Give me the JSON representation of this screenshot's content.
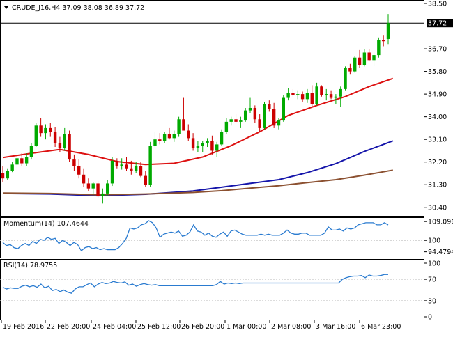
{
  "header": {
    "symbol_line": "CRUDE_J16,H4  37.09 38.08 36.89 37.72"
  },
  "indicators": {
    "momentum_label": "Momentum(14) 107.4644",
    "rsi_label": "RSI(14) 78.9755"
  },
  "colors": {
    "bull": "#00aa00",
    "bear": "#cc0000",
    "ma_fast": "#dd1111",
    "ma_mid": "#1515aa",
    "ma_slow": "#8b5030",
    "oscillator": "#2a7bd0",
    "grid": "#c8c8c8",
    "current_price_line": "#000000"
  },
  "chart_data": [
    {
      "type": "candlestick",
      "title": "CRUDE_J16,H4",
      "ohlc_header": {
        "open": 37.09,
        "high": 38.08,
        "low": 36.89,
        "close": 37.72
      },
      "ylim": [
        30.2,
        38.5
      ],
      "yticks": [
        "38.50",
        "37.72",
        "36.70",
        "35.80",
        "34.90",
        "34.00",
        "33.10",
        "32.20",
        "31.30",
        "30.40"
      ],
      "current_price": "37.72",
      "x_tick_labels": [
        "19 Feb 2016",
        "22 Feb 20:00",
        "24 Feb 04:00",
        "25 Feb 12:00",
        "26 Feb 20:00",
        "1 Mar 00:00",
        "2 Mar 08:00",
        "3 Mar 16:00",
        "6 Mar 23:00"
      ],
      "candles": [
        [
          31.75,
          32.05,
          31.4,
          31.55
        ],
        [
          31.55,
          31.95,
          31.5,
          31.85
        ],
        [
          31.85,
          32.2,
          31.8,
          32.1
        ],
        [
          32.1,
          32.45,
          31.95,
          32.35
        ],
        [
          32.35,
          32.55,
          32.05,
          32.15
        ],
        [
          32.15,
          32.55,
          32.05,
          32.4
        ],
        [
          32.4,
          32.95,
          32.3,
          32.85
        ],
        [
          32.85,
          33.75,
          32.8,
          33.65
        ],
        [
          33.65,
          33.95,
          33.2,
          33.35
        ],
        [
          33.35,
          33.7,
          33.1,
          33.55
        ],
        [
          33.55,
          33.75,
          33.2,
          33.4
        ],
        [
          33.4,
          33.6,
          32.8,
          32.95
        ],
        [
          32.95,
          33.2,
          32.6,
          32.75
        ],
        [
          32.75,
          33.55,
          32.65,
          33.3
        ],
        [
          33.3,
          33.45,
          32.2,
          32.3
        ],
        [
          32.3,
          32.5,
          31.85,
          32.05
        ],
        [
          32.05,
          32.3,
          31.55,
          31.7
        ],
        [
          31.7,
          31.95,
          31.2,
          31.35
        ],
        [
          31.35,
          31.55,
          31.05,
          31.15
        ],
        [
          31.15,
          31.4,
          30.95,
          31.35
        ],
        [
          31.35,
          31.45,
          30.75,
          30.85
        ],
        [
          30.85,
          31.15,
          30.55,
          30.95
        ],
        [
          30.95,
          31.5,
          30.85,
          31.35
        ],
        [
          31.35,
          32.4,
          31.25,
          32.25
        ],
        [
          32.25,
          32.35,
          31.95,
          32.05
        ],
        [
          32.05,
          32.35,
          31.9,
          32.1
        ],
        [
          32.1,
          32.4,
          31.85,
          31.95
        ],
        [
          31.95,
          32.25,
          31.7,
          31.85
        ],
        [
          31.85,
          32.2,
          31.75,
          32.05
        ],
        [
          32.05,
          32.2,
          31.6,
          31.65
        ],
        [
          31.65,
          31.85,
          31.2,
          31.3
        ],
        [
          31.3,
          33.0,
          31.2,
          32.85
        ],
        [
          32.85,
          33.4,
          32.75,
          33.1
        ],
        [
          33.1,
          33.35,
          32.9,
          33.05
        ],
        [
          33.05,
          33.4,
          32.95,
          33.3
        ],
        [
          33.3,
          33.55,
          33.1,
          33.15
        ],
        [
          33.15,
          33.45,
          33.0,
          33.3
        ],
        [
          33.3,
          34.0,
          33.2,
          33.9
        ],
        [
          33.9,
          34.75,
          33.5,
          33.45
        ],
        [
          33.45,
          33.7,
          33.05,
          33.15
        ],
        [
          33.15,
          33.35,
          32.65,
          32.75
        ],
        [
          32.75,
          33.05,
          32.6,
          32.85
        ],
        [
          32.85,
          33.05,
          32.6,
          32.95
        ],
        [
          32.95,
          33.15,
          32.8,
          33.05
        ],
        [
          33.05,
          33.25,
          32.5,
          32.65
        ],
        [
          32.65,
          33.0,
          32.4,
          32.9
        ],
        [
          32.9,
          33.5,
          32.85,
          33.4
        ],
        [
          33.4,
          33.95,
          33.3,
          33.8
        ],
        [
          33.8,
          34.0,
          33.65,
          33.9
        ],
        [
          33.9,
          34.1,
          33.75,
          33.8
        ],
        [
          33.8,
          34.0,
          33.55,
          33.85
        ],
        [
          33.85,
          34.35,
          33.8,
          34.25
        ],
        [
          34.25,
          34.75,
          34.15,
          34.35
        ],
        [
          34.35,
          34.45,
          33.75,
          33.9
        ],
        [
          33.9,
          34.1,
          33.4,
          33.55
        ],
        [
          33.55,
          34.6,
          33.5,
          34.5
        ],
        [
          34.5,
          34.65,
          34.2,
          34.3
        ],
        [
          34.3,
          34.55,
          33.55,
          33.65
        ],
        [
          33.65,
          33.95,
          33.5,
          33.85
        ],
        [
          33.85,
          34.85,
          33.8,
          34.75
        ],
        [
          34.75,
          35.15,
          34.65,
          34.95
        ],
        [
          34.95,
          35.1,
          34.8,
          34.85
        ],
        [
          34.85,
          35.05,
          34.7,
          34.9
        ],
        [
          34.9,
          35.0,
          34.6,
          34.7
        ],
        [
          34.7,
          35.1,
          34.55,
          34.95
        ],
        [
          34.95,
          35.25,
          34.4,
          34.5
        ],
        [
          34.5,
          35.35,
          34.45,
          35.2
        ],
        [
          35.2,
          35.25,
          34.8,
          34.85
        ],
        [
          34.85,
          35.1,
          34.65,
          34.9
        ],
        [
          34.9,
          35.05,
          34.7,
          34.75
        ],
        [
          34.75,
          34.9,
          34.5,
          34.8
        ],
        [
          34.8,
          35.2,
          34.4,
          35.1
        ],
        [
          35.1,
          36.0,
          35.05,
          35.95
        ],
        [
          35.95,
          36.1,
          35.7,
          35.8
        ],
        [
          35.8,
          36.4,
          35.75,
          36.35
        ],
        [
          36.35,
          36.65,
          35.95,
          36.05
        ],
        [
          36.05,
          36.7,
          36.0,
          36.55
        ],
        [
          36.55,
          36.7,
          36.2,
          36.25
        ],
        [
          36.25,
          36.55,
          36.0,
          36.45
        ],
        [
          36.45,
          37.15,
          36.35,
          37.05
        ],
        [
          37.05,
          37.25,
          36.8,
          37.0
        ],
        [
          37.09,
          38.08,
          36.89,
          37.72
        ]
      ],
      "moving_averages": [
        {
          "color_key": "ma_fast",
          "points": [
            [
              0,
              32.38
            ],
            [
              6,
              32.55
            ],
            [
              12,
              32.7
            ],
            [
              18,
              32.5
            ],
            [
              24,
              32.22
            ],
            [
              30,
              32.1
            ],
            [
              36,
              32.15
            ],
            [
              42,
              32.4
            ],
            [
              48,
              32.85
            ],
            [
              54,
              33.4
            ],
            [
              60,
              34.05
            ],
            [
              66,
              34.45
            ],
            [
              72,
              34.8
            ],
            [
              77,
              35.2
            ],
            [
              82,
              35.52
            ]
          ]
        },
        {
          "color_key": "ma_mid",
          "points": [
            [
              0,
              30.95
            ],
            [
              10,
              30.93
            ],
            [
              20,
              30.86
            ],
            [
              30,
              30.92
            ],
            [
              40,
              31.05
            ],
            [
              46,
              31.2
            ],
            [
              52,
              31.35
            ],
            [
              58,
              31.5
            ],
            [
              64,
              31.78
            ],
            [
              70,
              32.14
            ],
            [
              76,
              32.62
            ],
            [
              82,
              33.04
            ]
          ]
        },
        {
          "color_key": "ma_slow",
          "points": [
            [
              0,
              30.97
            ],
            [
              10,
              30.95
            ],
            [
              20,
              30.9
            ],
            [
              30,
              30.93
            ],
            [
              40,
              30.99
            ],
            [
              46,
              31.06
            ],
            [
              52,
              31.16
            ],
            [
              58,
              31.26
            ],
            [
              64,
              31.38
            ],
            [
              70,
              31.5
            ],
            [
              76,
              31.68
            ],
            [
              82,
              31.88
            ]
          ]
        }
      ]
    },
    {
      "type": "line",
      "title": "Momentum(14) 107.4644",
      "ylim": [
        92.0,
        110.5
      ],
      "yticks": [
        "109.0966",
        "100",
        "94.4794"
      ],
      "values": [
        99,
        97.5,
        98,
        96.5,
        96,
        97.5,
        98.5,
        97.5,
        99.5,
        98.5,
        100.5,
        100,
        101.5,
        100.5,
        101,
        98.5,
        100,
        99,
        97.5,
        99,
        98,
        95,
        96.5,
        97,
        96,
        96.5,
        95.5,
        96,
        95.5,
        95.5,
        95.5,
        96.5,
        98.5,
        101,
        106,
        105.5,
        106,
        107.5,
        108,
        109.5,
        108.5,
        106,
        101.5,
        103,
        103.5,
        104,
        103.5,
        104.5,
        102,
        102.5,
        104,
        107.5,
        104.5,
        104,
        102.5,
        103.5,
        102,
        101.5,
        103,
        104,
        102,
        104.5,
        105,
        104,
        103,
        102.5,
        102.5,
        102.5,
        102.5,
        103,
        102.5,
        103,
        102.5,
        102.5,
        102.5,
        103.5,
        105,
        103.5,
        103,
        103,
        103.5,
        103.5,
        102.5,
        102.5,
        102.5,
        102.5,
        103.5,
        106.5,
        105,
        105,
        105.5,
        104.5,
        106,
        105.5,
        106,
        107.5,
        108,
        108.5,
        108.5,
        108.5,
        107.5,
        107.5,
        108.5,
        107.46
      ]
    },
    {
      "type": "line",
      "title": "RSI(14) 78.9755",
      "ylim": [
        0,
        100
      ],
      "yticks": [
        "100",
        "70",
        "30",
        "0"
      ],
      "values": [
        55,
        52,
        54,
        53,
        53,
        57,
        59,
        56,
        58,
        55,
        61,
        54,
        57,
        49,
        51,
        47,
        50,
        46,
        44,
        52,
        56,
        56,
        60,
        63,
        56,
        61,
        64,
        62,
        63,
        66,
        64,
        63,
        65,
        59,
        61,
        57,
        60,
        62,
        60,
        59,
        60,
        58,
        58,
        58,
        58,
        58,
        58,
        58,
        58,
        58,
        58,
        58,
        58,
        58,
        58,
        58,
        60,
        66,
        61,
        63,
        62,
        63,
        62,
        63,
        63,
        63,
        63,
        63,
        63,
        63,
        63,
        63,
        63,
        63,
        63,
        63,
        63,
        63,
        63,
        63,
        63,
        63,
        63,
        63,
        63,
        63,
        63,
        63,
        63,
        70,
        73,
        75,
        76,
        76,
        77,
        73,
        78,
        76,
        76,
        77,
        79,
        79.0
      ]
    }
  ]
}
